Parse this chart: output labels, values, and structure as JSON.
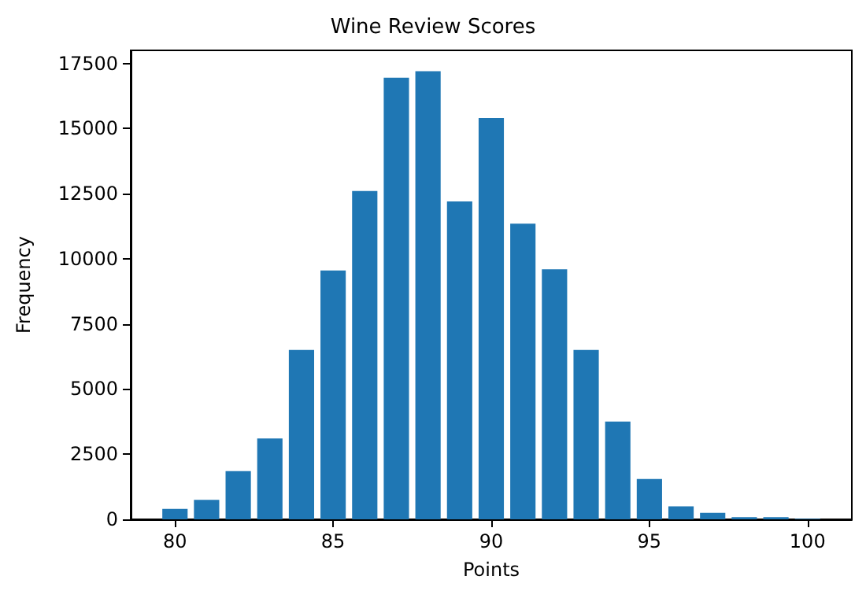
{
  "chart_data": {
    "type": "bar",
    "title": "Wine Review Scores",
    "xlabel": "Points",
    "ylabel": "Frequency",
    "x": [
      80,
      81,
      82,
      83,
      84,
      85,
      86,
      87,
      88,
      89,
      90,
      91,
      92,
      93,
      94,
      95,
      96,
      97,
      98,
      99,
      100
    ],
    "values": [
      400,
      750,
      1850,
      3100,
      6500,
      9550,
      12600,
      16950,
      17200,
      12200,
      15400,
      11350,
      9600,
      6500,
      3750,
      1550,
      500,
      250,
      80,
      80,
      20
    ],
    "color": "#1f77b4",
    "xlim": [
      78.6,
      101.4
    ],
    "xticks": [
      80,
      85,
      90,
      95,
      100
    ],
    "ylim": [
      0,
      18000
    ],
    "yticks": [
      0,
      2500,
      5000,
      7500,
      10000,
      12500,
      15000,
      17500
    ],
    "grid": false,
    "legend": false
  }
}
